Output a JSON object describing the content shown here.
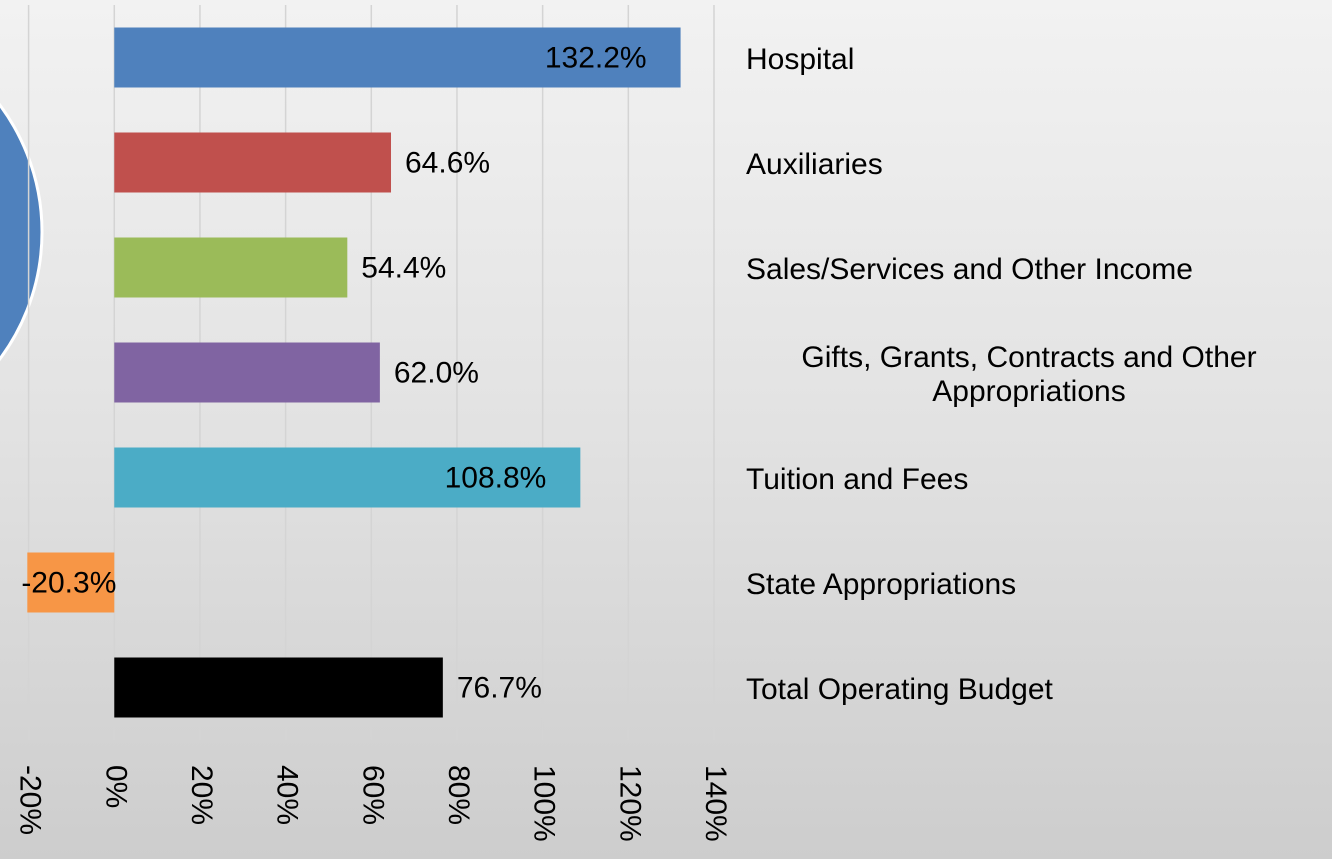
{
  "chart_data": {
    "type": "bar",
    "orientation": "horizontal",
    "categories": [
      "Hospital",
      "Auxiliaries",
      "Sales/Services and Other Income",
      "Gifts, Grants, Contracts and Other Appropriations",
      "Tuition and Fees",
      "State Appropriations",
      "Total Operating Budget"
    ],
    "values": [
      132.2,
      64.6,
      54.4,
      62.0,
      108.8,
      -20.3,
      76.7
    ],
    "value_labels": [
      "132.2%",
      "64.6%",
      "54.4%",
      "62.0%",
      "108.8%",
      "-20.3%",
      "76.7%"
    ],
    "colors": [
      "#4f81bd",
      "#c0504d",
      "#9bbb59",
      "#8064a2",
      "#4bacc6",
      "#f79646",
      "#000000"
    ],
    "xlim": [
      -20,
      140
    ],
    "xticks": [
      {
        "value": -20,
        "label": "-20%"
      },
      {
        "value": 0,
        "label": "0%"
      },
      {
        "value": 20,
        "label": "20%"
      },
      {
        "value": 40,
        "label": "40%"
      },
      {
        "value": 60,
        "label": "60%"
      },
      {
        "value": 80,
        "label": "80%"
      },
      {
        "value": 100,
        "label": "100%"
      },
      {
        "value": 120,
        "label": "120%"
      },
      {
        "value": 140,
        "label": "140%"
      }
    ],
    "grid": true
  }
}
